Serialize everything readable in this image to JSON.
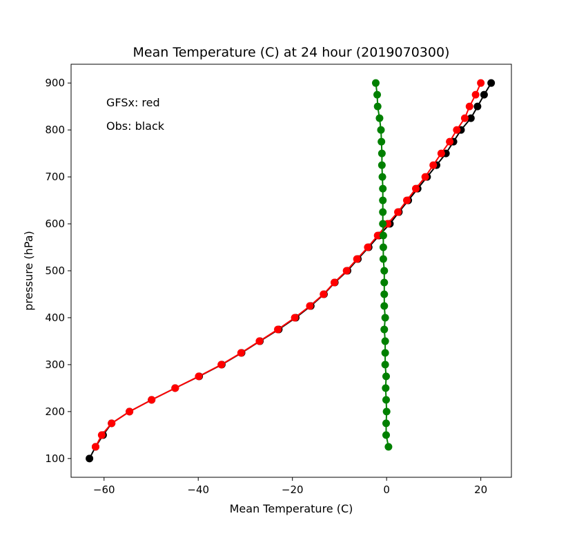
{
  "chart_data": {
    "type": "line",
    "title": "Mean Temperature (C) at 24 hour (2019070300)",
    "xlabel": "Mean Temperature (C)",
    "ylabel": "pressure (hPa)",
    "xlim": [
      -67,
      26.5
    ],
    "ylim": [
      60,
      940
    ],
    "xticks": [
      -60,
      -40,
      -20,
      0,
      20
    ],
    "yticks": [
      100,
      200,
      300,
      400,
      500,
      600,
      700,
      800,
      900
    ],
    "xtick_labels": [
      "−60",
      "−40",
      "−20",
      "0",
      "20"
    ],
    "ytick_labels": [
      "100",
      "200",
      "300",
      "400",
      "500",
      "600",
      "700",
      "800",
      "900"
    ],
    "grid": false,
    "annotations": [
      "GFSx: red",
      "Obs: black"
    ],
    "series": [
      {
        "color": "#000000",
        "points": [
          [
            -63.1,
            100
          ],
          [
            -61.8,
            125
          ],
          [
            -60.2,
            150
          ],
          [
            -58.4,
            175
          ],
          [
            -54.6,
            200
          ],
          [
            -49.9,
            225
          ],
          [
            -44.9,
            250
          ],
          [
            -39.8,
            275
          ],
          [
            -35.0,
            300
          ],
          [
            -30.8,
            325
          ],
          [
            -26.9,
            350
          ],
          [
            -22.9,
            375
          ],
          [
            -19.3,
            400
          ],
          [
            -16.1,
            425
          ],
          [
            -13.3,
            450
          ],
          [
            -11.0,
            475
          ],
          [
            -8.3,
            500
          ],
          [
            -6.1,
            525
          ],
          [
            -3.8,
            550
          ],
          [
            -1.6,
            575
          ],
          [
            0.7,
            600
          ],
          [
            2.6,
            625
          ],
          [
            4.6,
            650
          ],
          [
            6.6,
            675
          ],
          [
            8.6,
            700
          ],
          [
            10.6,
            725
          ],
          [
            12.6,
            750
          ],
          [
            14.2,
            775
          ],
          [
            15.8,
            800
          ],
          [
            17.9,
            825
          ],
          [
            19.3,
            850
          ],
          [
            20.7,
            875
          ],
          [
            22.2,
            900
          ]
        ]
      },
      {
        "color": "#ff0000",
        "points": [
          [
            -61.8,
            125
          ],
          [
            -60.5,
            150
          ],
          [
            -58.4,
            175
          ],
          [
            -54.6,
            200
          ],
          [
            -49.9,
            225
          ],
          [
            -44.9,
            250
          ],
          [
            -39.9,
            275
          ],
          [
            -35.1,
            300
          ],
          [
            -30.9,
            325
          ],
          [
            -27.0,
            350
          ],
          [
            -23.1,
            375
          ],
          [
            -19.5,
            400
          ],
          [
            -16.3,
            425
          ],
          [
            -13.4,
            450
          ],
          [
            -11.1,
            475
          ],
          [
            -8.5,
            500
          ],
          [
            -6.3,
            525
          ],
          [
            -4.0,
            550
          ],
          [
            -1.9,
            575
          ],
          [
            0.2,
            600
          ],
          [
            2.4,
            625
          ],
          [
            4.3,
            650
          ],
          [
            6.2,
            675
          ],
          [
            8.2,
            700
          ],
          [
            9.9,
            725
          ],
          [
            11.6,
            750
          ],
          [
            13.4,
            775
          ],
          [
            14.9,
            800
          ],
          [
            16.6,
            825
          ],
          [
            17.6,
            850
          ],
          [
            18.9,
            875
          ],
          [
            20.0,
            900
          ]
        ]
      },
      {
        "color": "#008000",
        "points": [
          [
            0.4,
            125
          ],
          [
            -0.1,
            150
          ],
          [
            -0.1,
            175
          ],
          [
            0.0,
            200
          ],
          [
            -0.1,
            225
          ],
          [
            -0.2,
            250
          ],
          [
            -0.1,
            275
          ],
          [
            -0.3,
            300
          ],
          [
            -0.3,
            325
          ],
          [
            -0.3,
            350
          ],
          [
            -0.5,
            375
          ],
          [
            -0.3,
            400
          ],
          [
            -0.5,
            425
          ],
          [
            -0.5,
            450
          ],
          [
            -0.5,
            475
          ],
          [
            -0.5,
            500
          ],
          [
            -0.7,
            525
          ],
          [
            -0.7,
            550
          ],
          [
            -0.7,
            575
          ],
          [
            -0.8,
            600
          ],
          [
            -0.8,
            625
          ],
          [
            -0.8,
            650
          ],
          [
            -0.8,
            675
          ],
          [
            -0.9,
            700
          ],
          [
            -1.0,
            725
          ],
          [
            -1.0,
            750
          ],
          [
            -1.1,
            775
          ],
          [
            -1.2,
            800
          ],
          [
            -1.5,
            825
          ],
          [
            -1.9,
            850
          ],
          [
            -2.0,
            875
          ],
          [
            -2.3,
            900
          ]
        ]
      }
    ]
  }
}
